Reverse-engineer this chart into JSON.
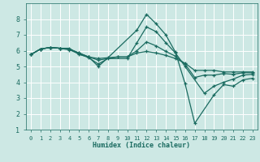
{
  "xlabel": "Humidex (Indice chaleur)",
  "bg_color": "#cde8e4",
  "line_color": "#1a6b60",
  "grid_color": "#b0d4ce",
  "xlim": [
    -0.5,
    23.5
  ],
  "ylim": [
    1,
    9
  ],
  "xticks": [
    0,
    1,
    2,
    3,
    4,
    5,
    6,
    7,
    8,
    9,
    10,
    11,
    12,
    13,
    14,
    15,
    16,
    17,
    18,
    19,
    20,
    21,
    22,
    23
  ],
  "yticks": [
    1,
    2,
    3,
    4,
    5,
    6,
    7,
    8
  ],
  "lines": [
    {
      "x": [
        0,
        1,
        2,
        3,
        4,
        5,
        6,
        7,
        8,
        11,
        12,
        13,
        14,
        15,
        16,
        17,
        19,
        20,
        21,
        22,
        23
      ],
      "y": [
        5.75,
        6.1,
        6.2,
        6.15,
        6.15,
        5.75,
        5.6,
        5.0,
        5.55,
        7.3,
        8.3,
        7.7,
        7.0,
        5.9,
        3.9,
        1.4,
        3.2,
        3.85,
        3.75,
        4.15,
        4.25
      ]
    },
    {
      "x": [
        0,
        1,
        2,
        3,
        4,
        5,
        6,
        7,
        8,
        10,
        11,
        12,
        13,
        14,
        15,
        16,
        18,
        19,
        20,
        21,
        22,
        23
      ],
      "y": [
        5.75,
        6.1,
        6.2,
        6.15,
        6.05,
        5.8,
        5.55,
        5.15,
        5.5,
        5.5,
        6.5,
        7.5,
        7.2,
        6.5,
        5.85,
        5.0,
        3.3,
        3.75,
        4.0,
        4.2,
        4.45,
        4.5
      ]
    },
    {
      "x": [
        0,
        1,
        2,
        3,
        4,
        5,
        6,
        7,
        9,
        10,
        11,
        12,
        13,
        14,
        15,
        16,
        17,
        18,
        19,
        20,
        21,
        22,
        23
      ],
      "y": [
        5.75,
        6.1,
        6.2,
        6.15,
        6.1,
        5.85,
        5.6,
        5.4,
        5.6,
        5.6,
        6.0,
        6.55,
        6.3,
        5.95,
        5.65,
        5.15,
        4.3,
        4.45,
        4.45,
        4.55,
        4.5,
        4.6,
        4.6
      ]
    },
    {
      "x": [
        0,
        1,
        2,
        3,
        4,
        5,
        6,
        7,
        9,
        10,
        11,
        12,
        13,
        14,
        15,
        16,
        17,
        18,
        19,
        20,
        21,
        22,
        23
      ],
      "y": [
        5.75,
        6.1,
        6.2,
        6.15,
        6.1,
        5.85,
        5.6,
        5.5,
        5.6,
        5.6,
        5.85,
        5.95,
        5.85,
        5.7,
        5.5,
        5.2,
        4.75,
        4.75,
        4.75,
        4.65,
        4.65,
        4.65,
        4.65
      ]
    }
  ]
}
